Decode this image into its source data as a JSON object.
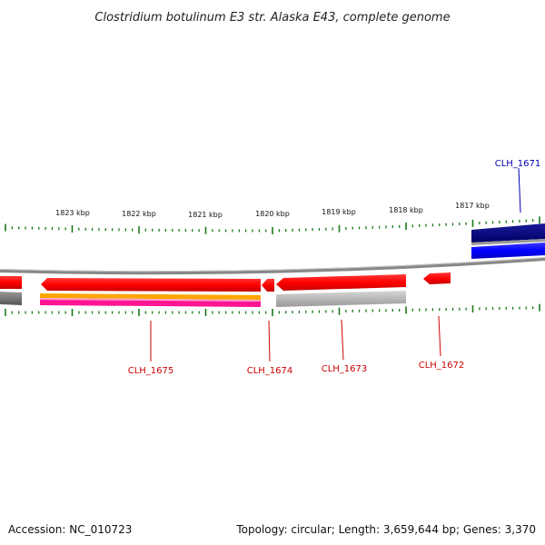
{
  "title": "Clostridium botulinum E3 str. Alaska E43, complete genome",
  "scale_labels": [
    "1823 kbp",
    "1822 kbp",
    "1821 kbp",
    "1820 kbp",
    "1819 kbp",
    "1818 kbp",
    "1817 kbp"
  ],
  "genes": [
    {
      "label": "CLH_1671",
      "color": "#0000b3",
      "strand": "+"
    },
    {
      "label": "CLH_1672",
      "color": "#cc0000",
      "strand": "-"
    },
    {
      "label": "CLH_1673",
      "color": "#cc0000",
      "strand": "-"
    },
    {
      "label": "CLH_1674",
      "color": "#cc0000",
      "strand": "-"
    },
    {
      "label": "CLH_1675",
      "color": "#cc0000",
      "strand": "-"
    }
  ],
  "colors": {
    "forward_cds": "#0000ff",
    "reverse_cds": "#ff0000",
    "backbone": "#888888",
    "ticks": "#1a7a1a",
    "orange_track": "#ffa500",
    "magenta_track": "#ff1493",
    "gray_track": "#bbbbbb",
    "navy_track": "#000080"
  },
  "footer": {
    "accession": "Accession: NC_010723",
    "topology": "Topology: circular; Length: 3,659,644 bp; Genes: 3,370"
  }
}
